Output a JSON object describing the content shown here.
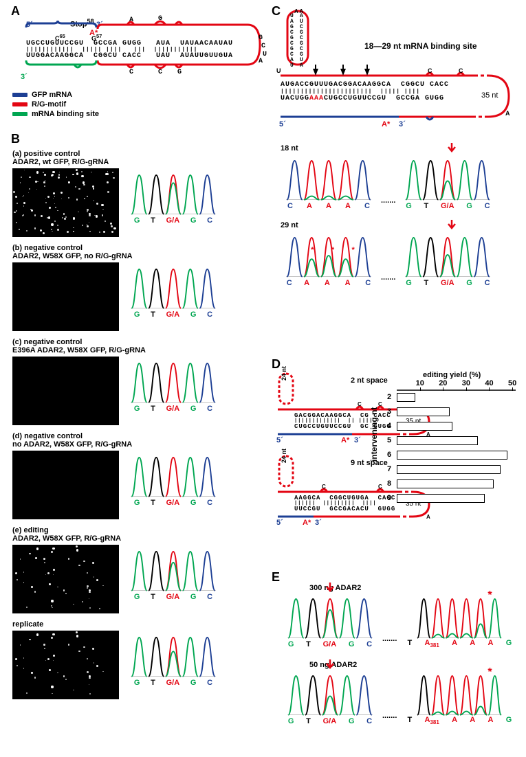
{
  "panels": {
    "A": "A",
    "B": "B",
    "C": "C",
    "D": "D",
    "E": "E"
  },
  "colors": {
    "gfp": "#1d3f94",
    "rg": "#e30613",
    "binding": "#00a651",
    "chrom_g": "#00a651",
    "chrom_t": "#000000",
    "chrom_a": "#e30613",
    "chrom_c": "#1d3f94"
  },
  "A": {
    "stop_label": "Stop",
    "stop_sup": "58",
    "c65": "C",
    "c65_sup": "65",
    "g57": "G",
    "g57_sup": "57",
    "astar": "A*",
    "five": "5´",
    "three": "3´",
    "three_b": "3´",
    "top_seq": "UGCCUGUUCCGU  GCCGA GUGG   AUA  UAUAACAAUAU",
    "bars": "||||||||||||  ||||| ||||   |||  |||||||||||",
    "bot_seq": "UUGGACAAGGCA  CGGCU CACC   UAU  AUAUUGUUGUA",
    "loop1": "A",
    "loop2": "G",
    "loop3": "G",
    "loop4": "C",
    "loop5": "U",
    "loop6": "A",
    "loop7": "C",
    "loop8": "C",
    "loop9": "G",
    "legend": [
      {
        "label": "GFP mRNA",
        "color": "#1d3f94"
      },
      {
        "label": "R/G-motif",
        "color": "#e30613"
      },
      {
        "label": "mRNA binding site",
        "color": "#00a651"
      }
    ]
  },
  "B": {
    "items": [
      {
        "tag": "(a) positive control",
        "desc": "ADAR2, wt GFP, R/G-gRNA",
        "dots": 120,
        "edit": 0.5
      },
      {
        "tag": "(b) negative control",
        "desc": "ADAR2, W58X GFP, no R/G-gRNA",
        "dots": 0,
        "edit": 0.0
      },
      {
        "tag": "(c) negative control",
        "desc": "E396A ADAR2, W58X GFP, R/G-gRNA",
        "dots": 0,
        "edit": 0.0
      },
      {
        "tag": "(d) negative control",
        "desc": "no ADAR2, W58X GFP, R/G-gRNA",
        "dots": 0,
        "edit": 0.0
      },
      {
        "tag": "(e) editing",
        "desc": "ADAR2, W58X GFP, R/G-gRNA",
        "dots": 45,
        "edit": 0.45
      },
      {
        "tag": "replicate",
        "desc": "",
        "dots": 40,
        "edit": 0.4
      }
    ],
    "bases": [
      "G",
      "T",
      "G/A",
      "G",
      "C"
    ],
    "base_colors": [
      "#00a651",
      "#000000",
      "#e30613",
      "#00a651",
      "#1d3f94"
    ]
  },
  "C": {
    "title": "18—29 nt mRNA binding site",
    "nt35": "35 nt",
    "hairpin": "UAGCGCGCGCGCGCAUAU",
    "top": "AUGACCGUUUGACGGACAAGGCA  CGGCU CACC",
    "bars": "|||||||||||||||||||||||  ||||| ||||",
    "bot": "UACUGGCAAACUGCCUGUUCCGU  GCCGA GUGG",
    "five": "5´",
    "three": "3´",
    "astar": "A*",
    "loopC": "C",
    "loopC2": "C",
    "loopA": "A",
    "loopU": "U",
    "aaa": "AAA",
    "traces": [
      {
        "label": "18 nt",
        "left_bases": [
          "C",
          "A",
          "A",
          "A",
          "C"
        ],
        "left_colors": [
          "#1d3f94",
          "#e30613",
          "#e30613",
          "#e30613",
          "#1d3f94"
        ],
        "stars": [
          false,
          false,
          false,
          false,
          false
        ],
        "right_bases": [
          "G",
          "T",
          "G/A",
          "G",
          "C"
        ],
        "right_colors": [
          "#00a651",
          "#000000",
          "#e30613",
          "#00a651",
          "#1d3f94"
        ],
        "edit": 0.3,
        "off": [
          0.05,
          0.05,
          0.05
        ]
      },
      {
        "label": "29 nt",
        "left_bases": [
          "C",
          "A",
          "A",
          "A",
          "C"
        ],
        "left_colors": [
          "#1d3f94",
          "#e30613",
          "#e30613",
          "#e30613",
          "#1d3f94"
        ],
        "stars": [
          false,
          true,
          true,
          true,
          false
        ],
        "right_bases": [
          "G",
          "T",
          "G/A",
          "G",
          "C"
        ],
        "right_colors": [
          "#00a651",
          "#000000",
          "#e30613",
          "#00a651",
          "#1d3f94"
        ],
        "edit": 0.35,
        "off": [
          0.25,
          0.3,
          0.25
        ]
      }
    ]
  },
  "D": {
    "space2": "2 nt space",
    "space9": "9 nt space",
    "twentyfour": "24 nt",
    "nt35": "35 nt",
    "top2": "GACGGACAAGGCA  CG CACC",
    "bars2": "|||||||||||||  || ||||",
    "bot2": "CUGCCUGUUCCGU  GC GUGG",
    "top9": "AAGGCA  CGGCUGUGA  CACC",
    "bars9": "||||||  |||||||||  ||||",
    "bot9": "UUCCGU  GCCGACACU  GUGG",
    "astar": "A*",
    "five": "5´",
    "three": "3´",
    "loopC": "C",
    "loopC2": "C",
    "loopA": "A",
    "chart": {
      "title": "editing yield (%)",
      "ylab": "intervening nt",
      "xticks": [
        10,
        20,
        30,
        40,
        50
      ],
      "bars": [
        {
          "nt": "2",
          "v": 8
        },
        {
          "nt": "3",
          "v": 23
        },
        {
          "nt": "4",
          "v": 24
        },
        {
          "nt": "5",
          "v": 35
        },
        {
          "nt": "6",
          "v": 48
        },
        {
          "nt": "7",
          "v": 45
        },
        {
          "nt": "8",
          "v": 42
        },
        {
          "nt": "9",
          "v": 38
        }
      ]
    }
  },
  "E": {
    "items": [
      {
        "label": "300 ng ADAR2",
        "edit": 0.45,
        "a_off": [
          0.05,
          0.06,
          0.06,
          0.2
        ]
      },
      {
        "label": "50 ng ADAR2",
        "edit": 0.3,
        "a_off": [
          0.04,
          0.05,
          0.05,
          0.12
        ]
      }
    ],
    "left_bases": [
      "G",
      "T",
      "G/A",
      "G",
      "C"
    ],
    "left_colors": [
      "#00a651",
      "#000000",
      "#e30613",
      "#00a651",
      "#1d3f94"
    ],
    "right_bases": [
      "T",
      "A",
      "A",
      "A",
      "A",
      "G"
    ],
    "right_sub": "381",
    "right_colors": [
      "#000000",
      "#e30613",
      "#e30613",
      "#e30613",
      "#e30613",
      "#00a651"
    ]
  }
}
